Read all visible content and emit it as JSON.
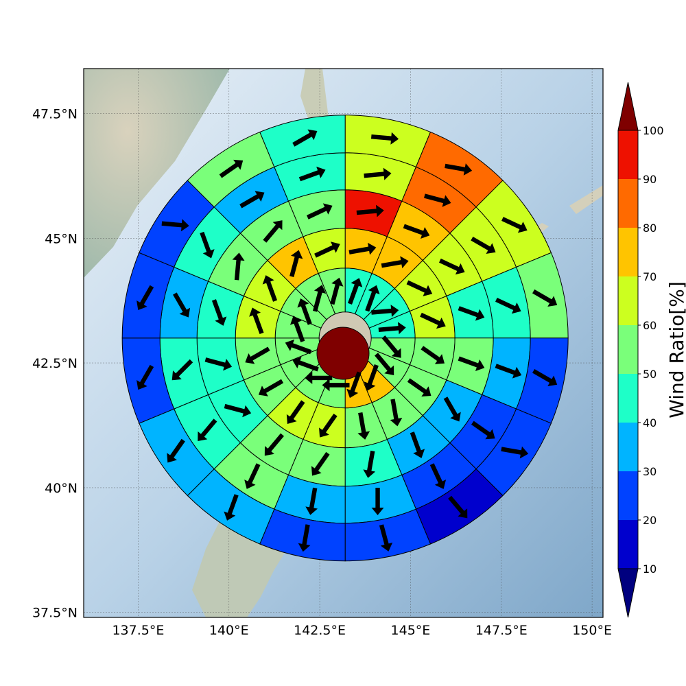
{
  "chart_data": {
    "type": "heatmap",
    "subtype": "polar sector wind field on map",
    "map": {
      "lon_range": [
        136.0,
        150.3
      ],
      "lat_range": [
        37.4,
        48.4
      ],
      "x_ticks": [
        "137.5°E",
        "140°E",
        "142.5°E",
        "145°E",
        "147.5°E",
        "150°E"
      ],
      "y_ticks": [
        "47.5°N",
        "45°N",
        "42.5°N",
        "40°N",
        "37.5°N"
      ],
      "grid": true,
      "center_lon": 143.2,
      "center_lat": 43.0
    },
    "colorbar": {
      "label": "Wind Ratio[%]",
      "tick_labels": [
        "10",
        "20",
        "30",
        "40",
        "50",
        "60",
        "70",
        "80",
        "90",
        "100"
      ],
      "range": [
        10,
        100
      ],
      "extend": "both",
      "bin_colors": [
        "#0000cd",
        "#0042ff",
        "#00b4ff",
        "#1effc8",
        "#7aff7a",
        "#ccff1f",
        "#ffc400",
        "#ff6a00",
        "#ee1100"
      ],
      "under_color": "#00007f",
      "over_color": "#7f0000"
    },
    "sectors_per_ring": 16,
    "sector_order": "clockwise from north",
    "rings": [
      {
        "ring": 1,
        "values": [
          45,
          45,
          45,
          45,
          55,
          55,
          75,
          75,
          55,
          55,
          55,
          55,
          55,
          55,
          55,
          55
        ],
        "arrow_bearing_deg": [
          20,
          20,
          85,
          85,
          140,
          140,
          200,
          200,
          270,
          270,
          290,
          290,
          340,
          340,
          15,
          15
        ]
      },
      {
        "ring": 2,
        "values": [
          75,
          75,
          65,
          65,
          55,
          55,
          55,
          55,
          65,
          65,
          55,
          55,
          65,
          65,
          75,
          65
        ],
        "arrow_bearing_deg": [
          80,
          80,
          115,
          115,
          125,
          125,
          170,
          170,
          215,
          215,
          240,
          240,
          340,
          340,
          15,
          65
        ]
      },
      {
        "ring": 3,
        "values": [
          95,
          75,
          65,
          45,
          55,
          35,
          35,
          45,
          55,
          55,
          45,
          45,
          45,
          55,
          55,
          55
        ],
        "arrow_bearing_deg": [
          85,
          110,
          115,
          110,
          110,
          150,
          160,
          190,
          215,
          220,
          105,
          105,
          160,
          5,
          40,
          65
        ]
      },
      {
        "ring": 4,
        "values": [
          65,
          85,
          65,
          45,
          35,
          25,
          25,
          35,
          35,
          55,
          45,
          45,
          35,
          45,
          35,
          45
        ],
        "arrow_bearing_deg": [
          85,
          105,
          120,
          115,
          110,
          125,
          155,
          180,
          190,
          205,
          220,
          225,
          150,
          160,
          60,
          70
        ]
      },
      {
        "ring": 5,
        "values": [
          65,
          85,
          65,
          55,
          25,
          25,
          15,
          25,
          25,
          35,
          35,
          25,
          25,
          25,
          55,
          45
        ],
        "arrow_bearing_deg": [
          95,
          100,
          115,
          120,
          120,
          100,
          140,
          165,
          190,
          200,
          215,
          210,
          210,
          95,
          55,
          60
        ]
      }
    ]
  }
}
